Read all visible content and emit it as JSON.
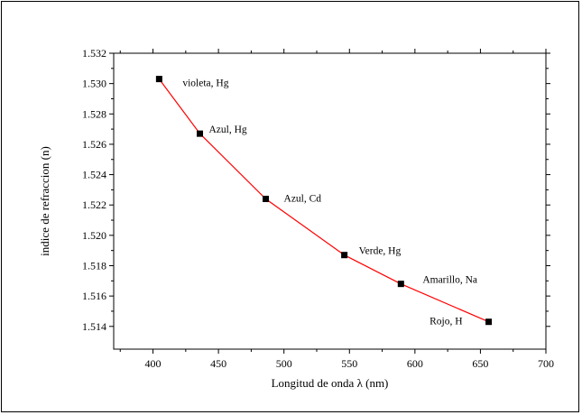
{
  "chart_data": {
    "type": "scatter",
    "xlabel": "Longitud de onda λ (nm)",
    "ylabel": "indice de refraccion (n)",
    "xlim": [
      370,
      700
    ],
    "ylim": [
      1.5125,
      1.532
    ],
    "x_ticks": [
      400,
      450,
      500,
      550,
      600,
      650,
      700
    ],
    "y_ticks": [
      1.514,
      1.516,
      1.518,
      1.52,
      1.522,
      1.524,
      1.526,
      1.528,
      1.53,
      1.532
    ],
    "y_tick_decimals": 3,
    "grid": false,
    "line_color": "#ff0000",
    "marker_color": "#000000",
    "series": [
      {
        "points": [
          {
            "x": 404.7,
            "y": 1.5303,
            "label": "violeta, Hg"
          },
          {
            "x": 435.8,
            "y": 1.5267,
            "label": "Azul, Hg"
          },
          {
            "x": 486.1,
            "y": 1.5224,
            "label": "Azul, Cd"
          },
          {
            "x": 546.1,
            "y": 1.5187,
            "label": "Verde, Hg"
          },
          {
            "x": 589.3,
            "y": 1.5168,
            "label": "Amarillo, Na"
          },
          {
            "x": 656.3,
            "y": 1.5143,
            "label": "Rojo, H"
          }
        ]
      }
    ]
  }
}
